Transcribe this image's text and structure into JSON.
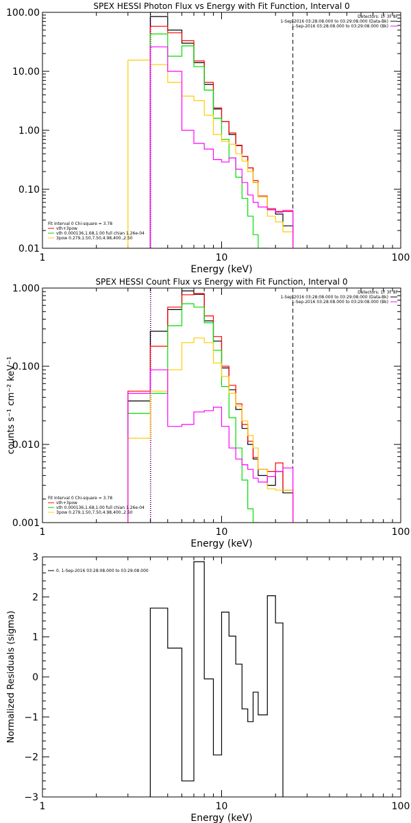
{
  "chart_data": [
    {
      "type": "line",
      "title": "SPEX HESSI Photon Flux vs Energy with Fit Function, Interval 0",
      "xlabel": "Energy (keV)",
      "ylabel": "",
      "xscale": "log",
      "yscale": "log",
      "xlim": [
        1,
        100
      ],
      "ylim": [
        0.01,
        100
      ],
      "xticks": [
        "1",
        "10",
        "100"
      ],
      "yticks": [
        "0.01",
        "0.10",
        "1.00",
        "10.00",
        "100.00"
      ],
      "detectors": "Detectors: 1F 3F 8F",
      "info_lines": [
        {
          "text": "1-Sep-2016 03:28:08.000 to 03:29:08.000 (Data-Bk)",
          "color": "#000000"
        },
        {
          "text": "1-Sep-2016 03:28:08.000 to 03:29:08.000 (Bk)",
          "color": "#ff00ff"
        }
      ],
      "legend": [
        {
          "text": "Fit Interval 0   Chi-square = 3.78",
          "color": null
        },
        {
          "text": "vth+3pow",
          "color": "#ff0000"
        },
        {
          "text": "vth 0.000136,1.68,1.00  full chian 1.26e-04",
          "color": "#00cc00"
        },
        {
          "text": "3pow 0.279,1.50,7.50,4.98,400.,2.50",
          "color": "#ffcc00"
        }
      ],
      "dashed_line_x": 25,
      "edges": [
        3,
        4,
        5,
        6,
        7,
        8,
        9,
        10,
        11,
        12,
        13,
        14,
        15,
        16,
        18,
        20,
        22,
        25
      ],
      "series": [
        {
          "name": "Data-Bk",
          "color": "#000000",
          "values": [
            null,
            85,
            50,
            30,
            14,
            6,
            2.3,
            1.4,
            0.85,
            0.55,
            0.36,
            0.23,
            0.13,
            0.075,
            0.045,
            0.038,
            0.024
          ]
        },
        {
          "name": "vth+3pow",
          "color": "#ff0000",
          "values": [
            null,
            58,
            45,
            33,
            15,
            6.5,
            2.4,
            1.4,
            0.9,
            0.56,
            0.36,
            0.23,
            0.14,
            0.077,
            0.047,
            0.042,
            0.042
          ]
        },
        {
          "name": "vth",
          "color": "#00dd00",
          "values": [
            null,
            43,
            18,
            27,
            12,
            4.8,
            1.6,
            0.7,
            0.34,
            0.16,
            0.07,
            0.035,
            0.017,
            0.01,
            null,
            null,
            null
          ]
        },
        {
          "name": "3pow",
          "color": "#ffcc00",
          "values": [
            15.5,
            13,
            6.5,
            3.8,
            3.2,
            1.8,
            0.85,
            0.65,
            0.58,
            0.4,
            0.3,
            0.2,
            0.13,
            0.075,
            0.035,
            0.028,
            0.019
          ]
        },
        {
          "name": "Bk",
          "color": "#ff00ff",
          "values": [
            null,
            26,
            10,
            1.0,
            0.6,
            0.48,
            0.32,
            0.29,
            0.34,
            0.22,
            0.13,
            0.08,
            0.06,
            0.05,
            0.045,
            0.041,
            0.044
          ]
        }
      ]
    },
    {
      "type": "line",
      "title": "SPEX HESSI Count Flux vs Energy with Fit Function, Interval 0",
      "xlabel": "Energy (keV)",
      "ylabel": "counts s⁻¹ cm⁻² keV⁻¹",
      "xscale": "log",
      "yscale": "log",
      "xlim": [
        1,
        100
      ],
      "ylim": [
        0.001,
        1
      ],
      "xticks": [
        "1",
        "10",
        "100"
      ],
      "yticks": [
        "0.001",
        "0.010",
        "0.100",
        "1.000"
      ],
      "detectors": "Detectors: 1F 3F 8F",
      "info_lines": [
        {
          "text": "1-Sep-2016 03:28:08.000 to 03:29:08.000 (Data-Bk)",
          "color": "#000000"
        },
        {
          "text": "1-Sep-2016 03:28:08.000 to 03:29:08.000 (Bk)",
          "color": "#ff00ff"
        }
      ],
      "legend": [
        {
          "text": "Fit Interval 0   Chi-square = 3.78",
          "color": null
        },
        {
          "text": "vth+3pow",
          "color": "#ff0000"
        },
        {
          "text": "vth 0.000136,1.68,1.00  full chian 1.26e-04",
          "color": "#00cc00"
        },
        {
          "text": "3pow 0.279,1.50,7.50,4.98,400.,2.50",
          "color": "#ffcc00"
        }
      ],
      "dashed_line_x": 25,
      "edges": [
        3,
        4,
        5,
        6,
        7,
        8,
        9,
        10,
        11,
        12,
        13,
        14,
        15,
        16,
        18,
        20,
        22,
        25
      ],
      "series": [
        {
          "name": "Data-Bk",
          "color": "#000000",
          "values": [
            0.036,
            0.28,
            0.53,
            0.92,
            0.83,
            0.38,
            0.21,
            0.095,
            0.05,
            0.028,
            0.016,
            0.01,
            0.0065,
            0.004,
            0.003,
            0.0045,
            0.0024
          ]
        },
        {
          "name": "vth+3pow",
          "color": "#ff0000",
          "values": [
            0.048,
            0.18,
            0.57,
            0.82,
            0.85,
            0.44,
            0.24,
            0.1,
            0.057,
            0.033,
            0.018,
            0.011,
            0.0068,
            0.0048,
            0.0045,
            0.0058,
            0.0026
          ]
        },
        {
          "name": "vth",
          "color": "#00dd00",
          "values": [
            0.025,
            0.045,
            0.33,
            0.63,
            0.57,
            0.36,
            0.16,
            0.055,
            0.022,
            0.009,
            0.0035,
            0.0015,
            0.001,
            null,
            null,
            null,
            null
          ]
        },
        {
          "name": "3pow",
          "color": "#ffcc00",
          "values": [
            0.012,
            0.048,
            0.09,
            0.2,
            0.23,
            0.2,
            0.11,
            0.074,
            0.045,
            0.031,
            0.02,
            0.013,
            0.009,
            0.0048,
            0.0027,
            0.0026,
            0.0026
          ]
        },
        {
          "name": "Bk",
          "color": "#ff00ff",
          "values": [
            0.045,
            0.09,
            0.017,
            0.018,
            0.026,
            0.027,
            0.03,
            0.017,
            0.009,
            0.0065,
            0.0055,
            0.0048,
            0.0037,
            0.0033,
            0.0039,
            0.0045,
            0.005
          ]
        }
      ]
    },
    {
      "type": "line",
      "title": "",
      "xlabel": "Energy (keV)",
      "ylabel": "Normalized Residuals (sigma)",
      "xscale": "log",
      "yscale": "linear",
      "xlim": [
        1,
        100
      ],
      "ylim": [
        -3,
        3
      ],
      "xticks": [
        "1",
        "10",
        "100"
      ],
      "yticks": [
        "−3",
        "−2",
        "−1",
        "0",
        "1",
        "2",
        "3"
      ],
      "legend": [
        {
          "text": "0. 1-Sep-2016 03:28:08.000 to 03:29:08.000",
          "color": "#000000"
        }
      ],
      "edges": [
        4,
        5,
        6,
        7,
        8,
        9,
        10,
        11,
        12,
        13,
        14,
        15,
        16,
        18,
        20,
        22,
        25
      ],
      "series": [
        {
          "name": "",
          "color": "#000000",
          "values": [
            1.72,
            0.72,
            -2.6,
            2.88,
            -0.05,
            -1.95,
            1.62,
            1.02,
            0.32,
            -0.8,
            -1.12,
            -0.38,
            -0.95,
            2.03,
            1.35,
            -3.1
          ]
        }
      ]
    }
  ]
}
